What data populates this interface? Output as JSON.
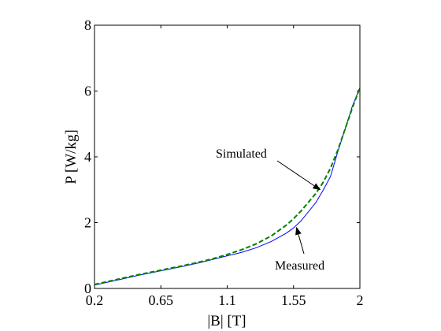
{
  "chart_data": {
    "type": "line",
    "title": "",
    "xlabel": "|B| [T]",
    "ylabel": "P [W/kg]",
    "xlim": [
      0.2,
      2.0
    ],
    "ylim": [
      0,
      8
    ],
    "xticks": [
      0.2,
      0.65,
      1.1,
      1.55,
      2.0
    ],
    "xtick_labels": [
      "0.2",
      "0.65",
      "1.1",
      "1.55",
      "2"
    ],
    "yticks": [
      0,
      2,
      4,
      6,
      8
    ],
    "ytick_labels": [
      "0",
      "2",
      "4",
      "6",
      "8"
    ],
    "grid": false,
    "legend": "none",
    "series": [
      {
        "name": "Measured",
        "color": "#0000ff",
        "style": "solid",
        "x": [
          0.2,
          0.3,
          0.4,
          0.5,
          0.6,
          0.7,
          0.8,
          0.9,
          1.0,
          1.1,
          1.2,
          1.3,
          1.4,
          1.5,
          1.55,
          1.6,
          1.7,
          1.75,
          1.8,
          1.85,
          1.9,
          1.95,
          2.0
        ],
        "y": [
          0.1,
          0.2,
          0.3,
          0.4,
          0.49,
          0.58,
          0.67,
          0.77,
          0.88,
          0.99,
          1.1,
          1.24,
          1.43,
          1.68,
          1.84,
          2.05,
          2.6,
          2.98,
          3.4,
          4.15,
          4.85,
          5.55,
          6.1
        ]
      },
      {
        "name": "Simulated",
        "color": "#008000",
        "style": "dashed",
        "x": [
          0.2,
          0.3,
          0.4,
          0.5,
          0.6,
          0.7,
          0.8,
          0.9,
          1.0,
          1.1,
          1.2,
          1.3,
          1.4,
          1.5,
          1.55,
          1.6,
          1.7,
          1.75,
          1.8,
          1.85,
          1.9,
          1.95,
          2.0
        ],
        "y": [
          0.12,
          0.22,
          0.32,
          0.42,
          0.51,
          0.6,
          0.69,
          0.79,
          0.9,
          1.03,
          1.18,
          1.36,
          1.6,
          1.92,
          2.12,
          2.35,
          2.88,
          3.22,
          3.65,
          4.2,
          4.85,
          5.5,
          6.1
        ]
      }
    ],
    "annotations": [
      {
        "text": "Simulated",
        "arrow_to": [
          1.73,
          3.0
        ]
      },
      {
        "text": "Measured",
        "arrow_to": [
          1.57,
          1.85
        ]
      }
    ]
  }
}
